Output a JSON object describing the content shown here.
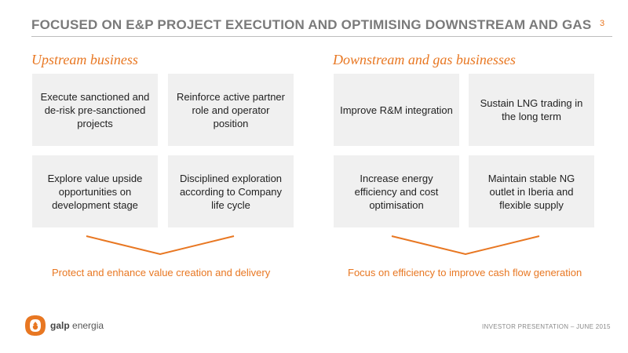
{
  "header": {
    "title": "FOCUSED ON E&P PROJECT EXECUTION AND OPTIMISING DOWNSTREAM AND GAS",
    "page_number": "3"
  },
  "upstream": {
    "title": "Upstream business",
    "boxes": [
      "Execute sanctioned and de-risk pre-sanctioned projects",
      "Reinforce active partner role and operator position",
      "Explore value upside opportunities on development stage",
      "Disciplined exploration according to Company life cycle"
    ],
    "conclusion": "Protect and enhance value creation and delivery"
  },
  "downstream": {
    "title": "Downstream and gas businesses",
    "boxes": [
      "Improve R&M integration",
      "Sustain LNG trading in the long term",
      "Increase energy efficiency and cost optimisation",
      "Maintain stable NG outlet in Iberia and flexible supply"
    ],
    "conclusion": "Focus on efficiency to improve cash flow generation"
  },
  "footer": {
    "logo_brand": "galp",
    "logo_suffix": "energia",
    "presentation": "INVESTOR PRESENTATION – JUNE 2015"
  },
  "colors": {
    "accent": "#e87722",
    "box_bg": "#f0f0f0",
    "title_gray": "#7a7a7a"
  }
}
